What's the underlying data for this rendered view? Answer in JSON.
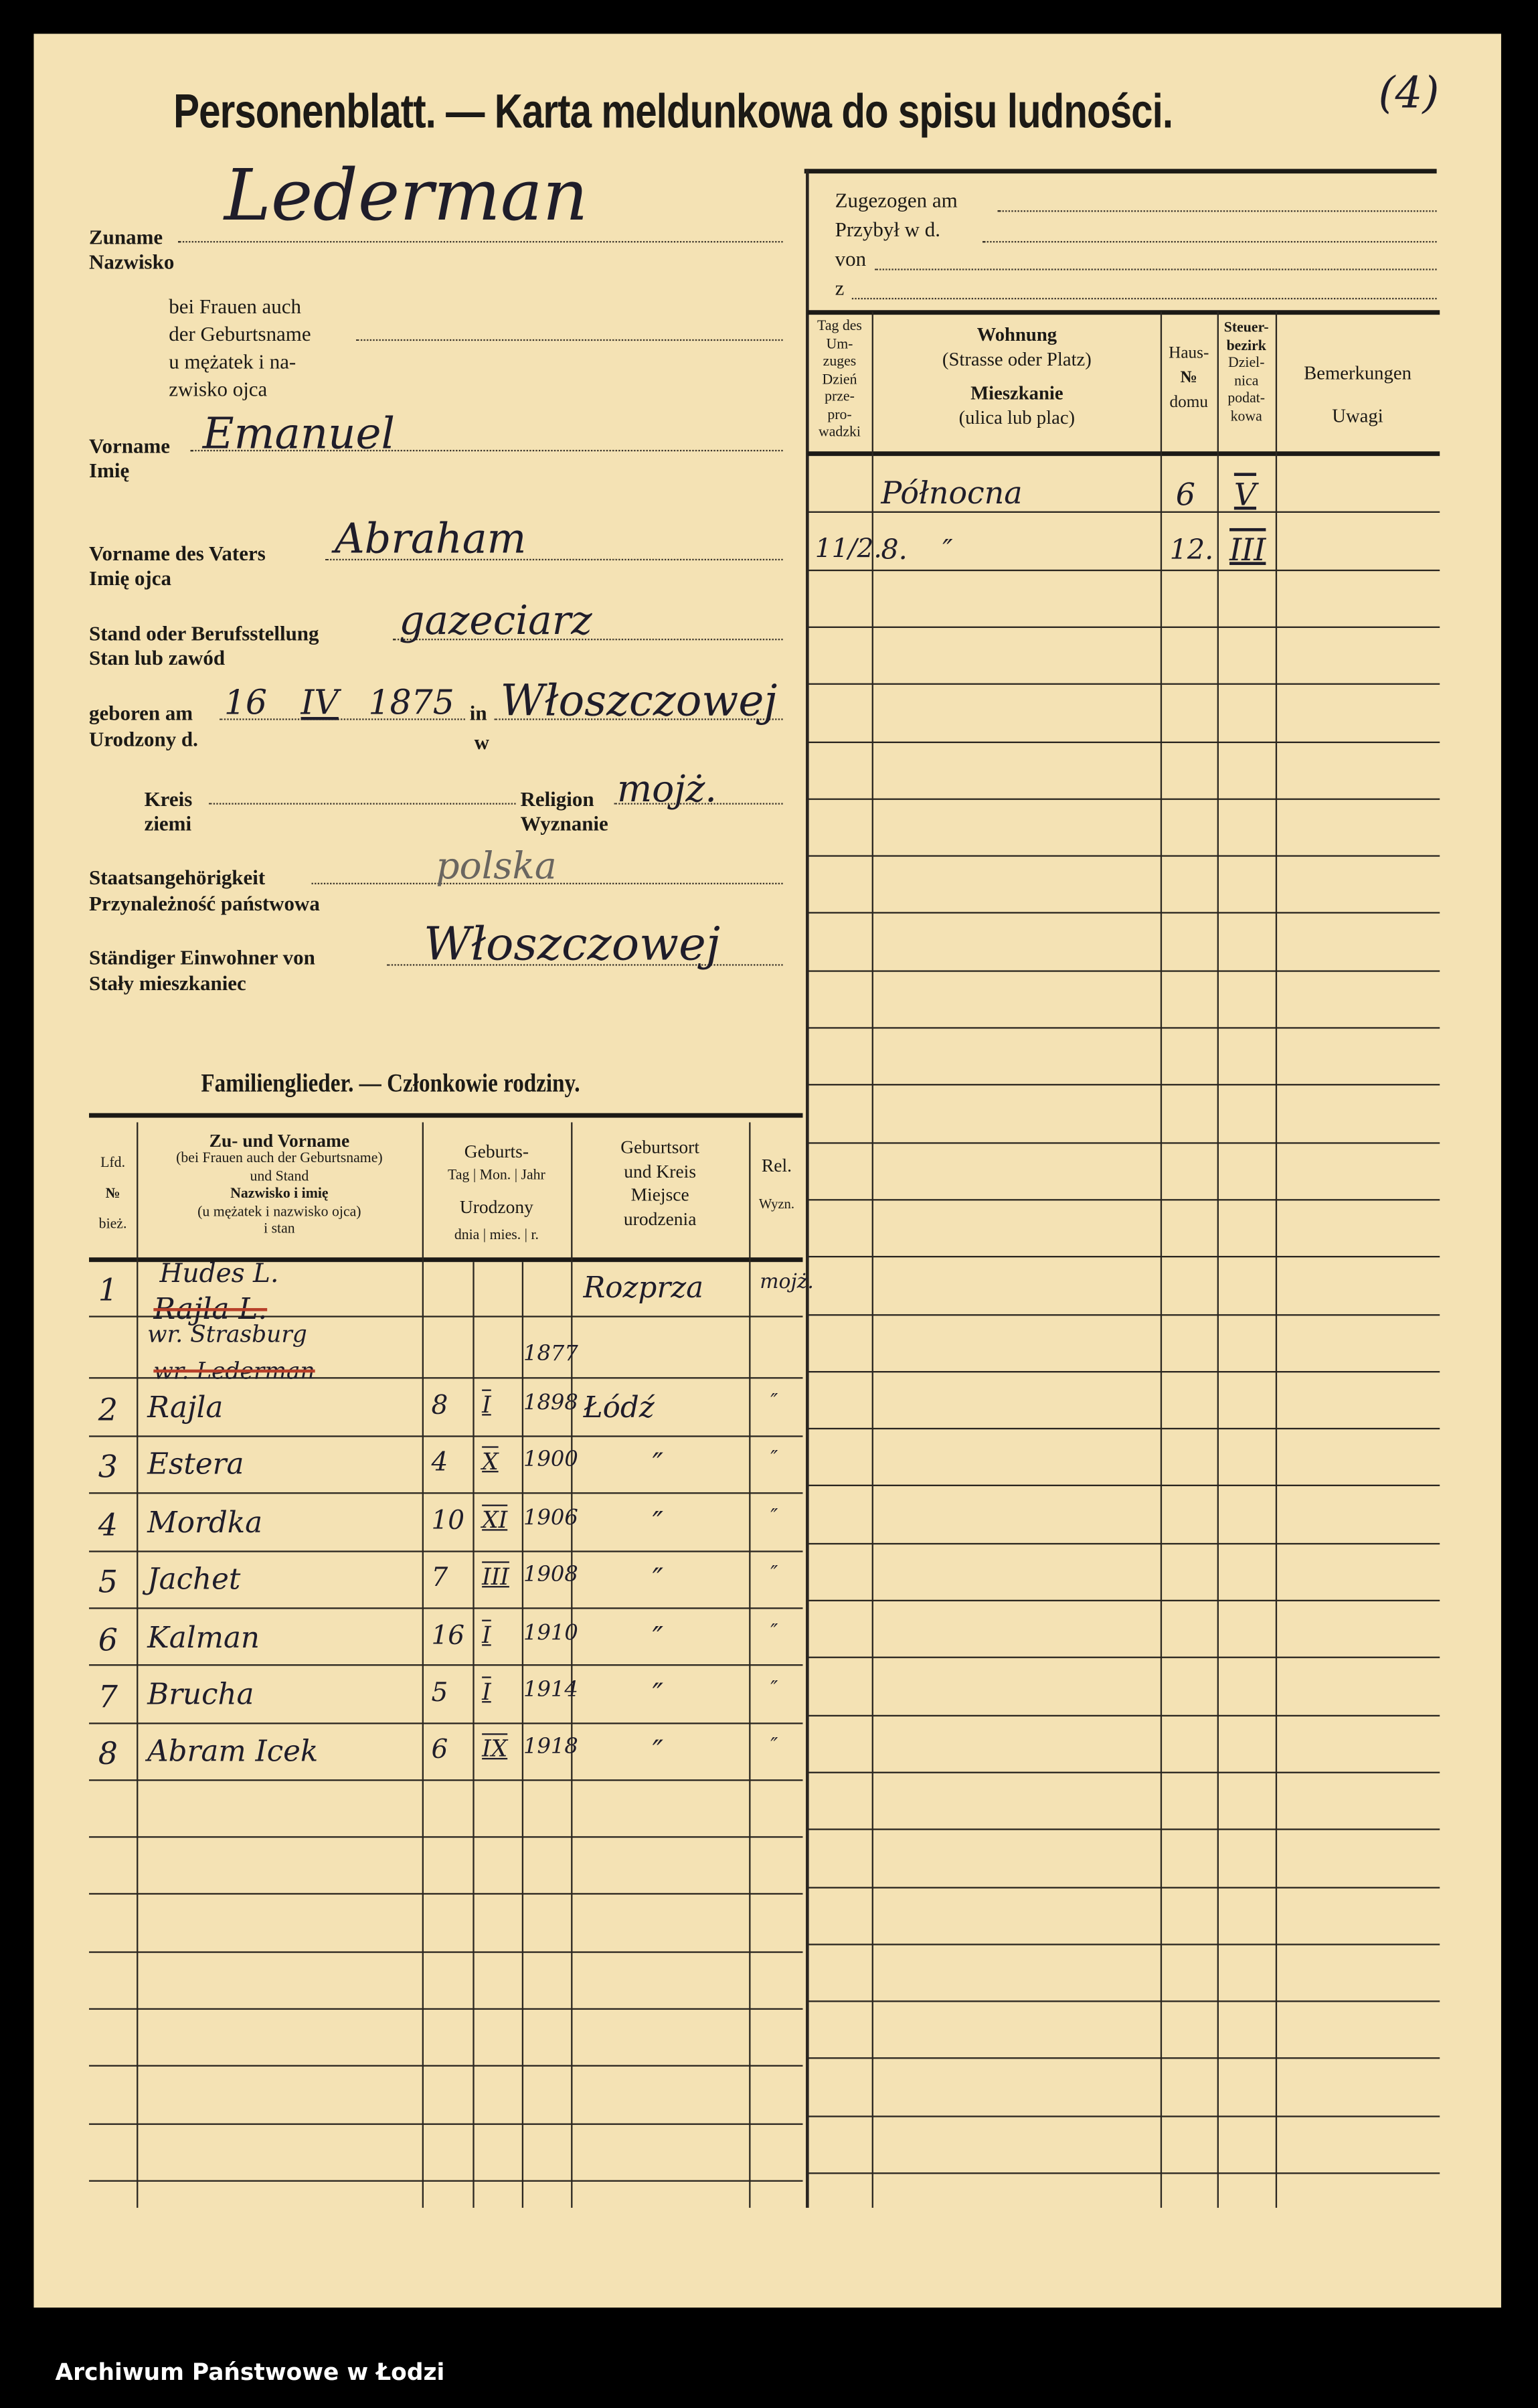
{
  "title": "Personenblatt. — Karta meldunkowa do spisu ludności.",
  "corner_mark": "(4)",
  "fields": {
    "surname": {
      "label_de": "Zuname",
      "label_pl": "Nazwisko",
      "value": "Lederman"
    },
    "maiden": {
      "label_lines": [
        "bei Frauen auch",
        "der Geburtsname",
        "u mężatek i na-",
        "zwisko ojca"
      ],
      "value": ""
    },
    "first_name": {
      "label_de": "Vorname",
      "label_pl": "Imię",
      "value": "Emanuel"
    },
    "father": {
      "label_de": "Vorname des Vaters",
      "label_pl": "Imię ojca",
      "value": "Abraham"
    },
    "occupation": {
      "label_de": "Stand oder Berufsstellung",
      "label_pl": "Stan lub zawód",
      "value": "gazeciarz"
    },
    "birth": {
      "label_de": "geboren am",
      "label_pl": "Urodzony d.",
      "in_de": "in",
      "in_pl": "w",
      "day": "16",
      "month": "IV",
      "year": "1875",
      "place": "Włoszczowej"
    },
    "district": {
      "label_de": "Kreis",
      "label_pl": "ziemi",
      "value": ""
    },
    "religion": {
      "label_de": "Religion",
      "label_pl": "Wyznanie",
      "value": "mojż."
    },
    "citizenship": {
      "label_de": "Staatsangehörigkeit",
      "label_pl": "Przynależność państwowa",
      "value": "polska"
    },
    "resident": {
      "label_de": "Ständiger Einwohner von",
      "label_pl": "Stały mieszkaniec",
      "value": "Włoszczowej"
    }
  },
  "moved": {
    "lines": [
      "Zugezogen am",
      "Przybył w d.",
      "von",
      "z"
    ]
  },
  "residence_table": {
    "headers": {
      "date": [
        "Tag des",
        "Um-",
        "zuges",
        "Dzień",
        "prze-",
        "pro-",
        "wadzki"
      ],
      "address_de_bold": "Wohnung",
      "address_de": "(Strasse oder Platz)",
      "address_pl_bold": "Mieszkanie",
      "address_pl": "(ulica lub plac)",
      "house": [
        "Haus-",
        "№",
        "domu"
      ],
      "tax": [
        "Steuer-",
        "bezirk",
        "Dziel-",
        "nica",
        "podat-",
        "kowa"
      ],
      "remarks": [
        "Bemerkungen",
        "Uwagi"
      ]
    },
    "rows": [
      {
        "date": "",
        "address": "Północna",
        "house": "6",
        "tax": "V",
        "remarks": ""
      },
      {
        "date": "11/2.",
        "address": "8.    ″",
        "house": "12.",
        "tax": "III",
        "remarks": ""
      }
    ]
  },
  "family": {
    "heading": "Familienglieder. — Członkowie rodziny.",
    "headers": {
      "no": [
        "Lfd.",
        "№",
        "bież."
      ],
      "name": [
        "Zu- und Vorname",
        "(bei Frauen auch der Geburtsname)",
        "und Stand",
        "Nazwisko i imię",
        "(u mężatek i nazwisko ojca)",
        "i stan"
      ],
      "birth": [
        "Geburts-",
        "Tag | Mon. | Jahr",
        "Urodzony",
        "dnia | mies. | r."
      ],
      "place": [
        "Geburtsort",
        "und Kreis",
        "Miejsce",
        "urodzenia"
      ],
      "rel": [
        "Rel.",
        "Wyzn."
      ]
    },
    "members": [
      {
        "no": "1",
        "name": "Hudes L.",
        "name_struck": "Rajla L.",
        "day": "",
        "month": "",
        "year": "",
        "place": "Rozprza",
        "rel": "mojż."
      },
      {
        "no": "",
        "name": "wr. Strasburg",
        "name_struck": "wr. Lederman",
        "day": "",
        "month": "",
        "year": "1877",
        "place": "",
        "rel": ""
      },
      {
        "no": "2",
        "name": "Rajla",
        "day": "8",
        "month": "I",
        "year": "1898",
        "place": "Łódź",
        "rel": "″"
      },
      {
        "no": "3",
        "name": "Estera",
        "day": "4",
        "month": "X",
        "year": "1900",
        "place": "″",
        "rel": "″"
      },
      {
        "no": "4",
        "name": "Mordka",
        "day": "10",
        "month": "XI",
        "year": "1906",
        "place": "″",
        "rel": "″"
      },
      {
        "no": "5",
        "name": "Jachet",
        "day": "7",
        "month": "III",
        "year": "1908",
        "place": "″",
        "rel": "″"
      },
      {
        "no": "6",
        "name": "Kalman",
        "day": "16",
        "month": "I",
        "year": "1910",
        "place": "″",
        "rel": "″"
      },
      {
        "no": "7",
        "name": "Brucha",
        "day": "5",
        "month": "I",
        "year": "1914",
        "place": "″",
        "rel": "″"
      },
      {
        "no": "8",
        "name": "Abram Icek",
        "day": "6",
        "month": "IX",
        "year": "1918",
        "place": "″",
        "rel": "″"
      }
    ]
  },
  "footer": "Archiwum Państwowe w Łodzi",
  "colors": {
    "paper": "#f4e2b4",
    "ink": "#1f1d2a",
    "strike": "#b8402a",
    "background": "#000000"
  }
}
